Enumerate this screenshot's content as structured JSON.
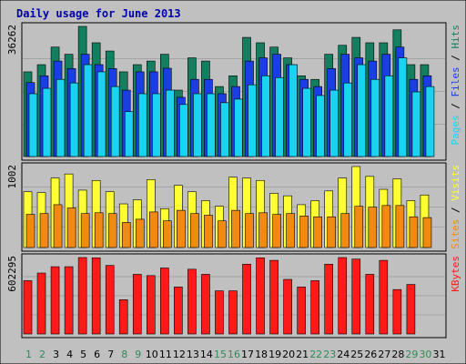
{
  "colors": {
    "background": "#c0c0c0",
    "frame": "#000000",
    "title": "#0000aa",
    "hits": "#137f5f",
    "files": "#1a3ee6",
    "pages": "#1ad3f0",
    "visits": "#ffff33",
    "sites": "#f08a10",
    "kbytes": "#ff1a1a",
    "weekend_day": "#2e8b57",
    "weekday_day": "#000000",
    "grid": "#888888"
  },
  "chart_data": {
    "type": "bar",
    "title": "Daily usage for June 2013",
    "categories": [
      "1",
      "2",
      "3",
      "4",
      "5",
      "6",
      "7",
      "8",
      "9",
      "10",
      "11",
      "12",
      "13",
      "14",
      "15",
      "16",
      "17",
      "18",
      "19",
      "20",
      "21",
      "22",
      "23",
      "24",
      "25",
      "26",
      "27",
      "28",
      "29",
      "30",
      "31"
    ],
    "weekend_days": [
      "1",
      "2",
      "8",
      "9",
      "15",
      "16",
      "22",
      "23",
      "29",
      "30"
    ],
    "panels": [
      {
        "id": "hits",
        "ymax_label": "36262",
        "ymax": 36262,
        "legend": [
          {
            "text": "Pages",
            "color_key": "pages"
          },
          {
            "text": " / ",
            "color_key": "frame"
          },
          {
            "text": "Files",
            "color_key": "files"
          },
          {
            "text": " / ",
            "color_key": "frame"
          },
          {
            "text": "Hits",
            "color_key": "hits"
          }
        ],
        "series": [
          {
            "name": "Hits",
            "color_key": "hits",
            "values": [
              23600,
              25600,
              30500,
              28500,
              36262,
              31700,
              29400,
              23600,
              25600,
              26600,
              28500,
              18500,
              27500,
              26600,
              19500,
              22500,
              33200,
              31700,
              30500,
              27500,
              22500,
              21500,
              28500,
              31000,
              33200,
              31700,
              31700,
              35300,
              25600,
              25600,
              null
            ]
          },
          {
            "name": "Files",
            "color_key": "files",
            "values": [
              20600,
              22500,
              26600,
              24500,
              28500,
              25600,
              24500,
              18500,
              23600,
              23600,
              24600,
              16500,
              21500,
              21500,
              17500,
              19500,
              26600,
              27500,
              28500,
              25600,
              21500,
              19500,
              24500,
              28500,
              27500,
              26600,
              28500,
              30500,
              21500,
              22500,
              null
            ]
          },
          {
            "name": "Pages",
            "color_key": "pages",
            "values": [
              17500,
              19000,
              21500,
              20500,
              25600,
              23600,
              19500,
              12500,
              17500,
              17500,
              18500,
              14500,
              17500,
              17500,
              15000,
              16000,
              20000,
              22500,
              22000,
              25600,
              19000,
              17000,
              18500,
              20500,
              25600,
              21500,
              22500,
              27500,
              18000,
              19500,
              null
            ]
          }
        ]
      },
      {
        "id": "visits",
        "ymax_label": "1002",
        "ymax": 1002,
        "legend": [
          {
            "text": "Sites",
            "color_key": "sites"
          },
          {
            "text": " / ",
            "color_key": "frame"
          },
          {
            "text": "Visits",
            "color_key": "visits"
          }
        ],
        "series": [
          {
            "name": "Visits",
            "color_key": "visits",
            "values": [
              690,
              680,
              860,
              910,
              710,
              830,
              690,
              540,
              590,
              840,
              480,
              770,
              690,
              580,
              510,
              870,
              860,
              830,
              670,
              640,
              530,
              580,
              700,
              860,
              1002,
              880,
              720,
              850,
              580,
              650,
              null
            ]
          },
          {
            "name": "Sites",
            "color_key": "sites",
            "values": [
              410,
              420,
              530,
              490,
              420,
              430,
              420,
              310,
              350,
              440,
              330,
              460,
              420,
              400,
              330,
              460,
              420,
              430,
              410,
              420,
              390,
              380,
              380,
              420,
              510,
              500,
              520,
              520,
              380,
              370,
              null
            ]
          }
        ]
      },
      {
        "id": "kbytes",
        "ymax_label": "602295",
        "ymax": 602295,
        "legend": [
          {
            "text": "KBytes",
            "color_key": "kbytes"
          }
        ],
        "series": [
          {
            "name": "KBytes",
            "color_key": "kbytes",
            "values": [
              420000,
              480000,
              530000,
              530000,
              602295,
              600000,
              540000,
              270000,
              470000,
              460000,
              520000,
              370000,
              510000,
              470000,
              340000,
              340000,
              550000,
              600000,
              580000,
              430000,
              370000,
              420000,
              550000,
              602295,
              590000,
              470000,
              580000,
              350000,
              390000,
              null,
              null
            ]
          }
        ]
      }
    ],
    "grid": true,
    "legend_position": "right"
  }
}
